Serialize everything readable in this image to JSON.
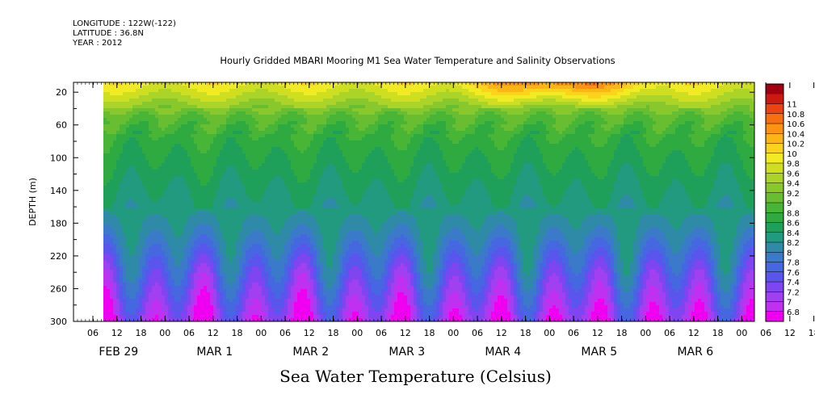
{
  "header": {
    "longitude": "LONGITUDE : 122W(-122)",
    "latitude": "LATITUDE : 36.8N",
    "year": "YEAR : 2012"
  },
  "chart_data": {
    "type": "heatmap",
    "title": "Hourly Gridded MBARI Mooring M1 Sea Water Temperature and Salinity Observations",
    "subtitle": "Sea Water Temperature (Celsius)",
    "xlabel": "",
    "ylabel": "DEPTH (m)",
    "y_range": [
      300,
      0
    ],
    "y_ticks": [
      20,
      60,
      100,
      140,
      180,
      220,
      260,
      300
    ],
    "x_hour_ticks": [
      "06",
      "12",
      "18",
      "00",
      "06",
      "12",
      "18",
      "00",
      "06",
      "12",
      "18",
      "00",
      "06",
      "12",
      "18",
      "00",
      "06",
      "12",
      "18",
      "00",
      "06",
      "12",
      "18",
      "00",
      "06",
      "12",
      "18",
      "00",
      "06",
      "12",
      "18",
      "00"
    ],
    "x_day_labels": [
      "FEB 29",
      "MAR  1",
      "MAR  2",
      "MAR  3",
      "MAR  4",
      "MAR  5",
      "MAR  6"
    ],
    "data_start": "FEB 29 08:00",
    "colorbar": {
      "levels": [
        "6.8",
        "7",
        "7.2",
        "7.4",
        "7.6",
        "7.8",
        "8",
        "8.2",
        "8.4",
        "8.6",
        "8.8",
        "9",
        "9.2",
        "9.4",
        "9.6",
        "9.8",
        "10",
        "10.2",
        "10.4",
        "10.6",
        "10.8",
        "11"
      ],
      "colors": [
        "#f000f0",
        "#c030f0",
        "#a040f0",
        "#7f45f0",
        "#5a55ec",
        "#4567e0",
        "#3a7ac8",
        "#2f8aa8",
        "#229a80",
        "#1fa05a",
        "#2eaa40",
        "#49b536",
        "#68be30",
        "#88c82c",
        "#acd428",
        "#d0de22",
        "#f2ea22",
        "#fdd21c",
        "#fdb416",
        "#fc9412",
        "#f7700f",
        "#ea4410",
        "#cc1a10",
        "#a00010"
      ]
    },
    "depth_profile": {
      "depths": [
        8,
        20,
        35,
        50,
        75,
        100,
        130,
        160,
        190,
        220,
        250,
        280,
        300
      ],
      "temperature_c": [
        9.9,
        9.7,
        9.4,
        9.0,
        8.75,
        8.6,
        8.45,
        8.3,
        8.1,
        7.8,
        7.5,
        7.2,
        7.0
      ]
    }
  }
}
